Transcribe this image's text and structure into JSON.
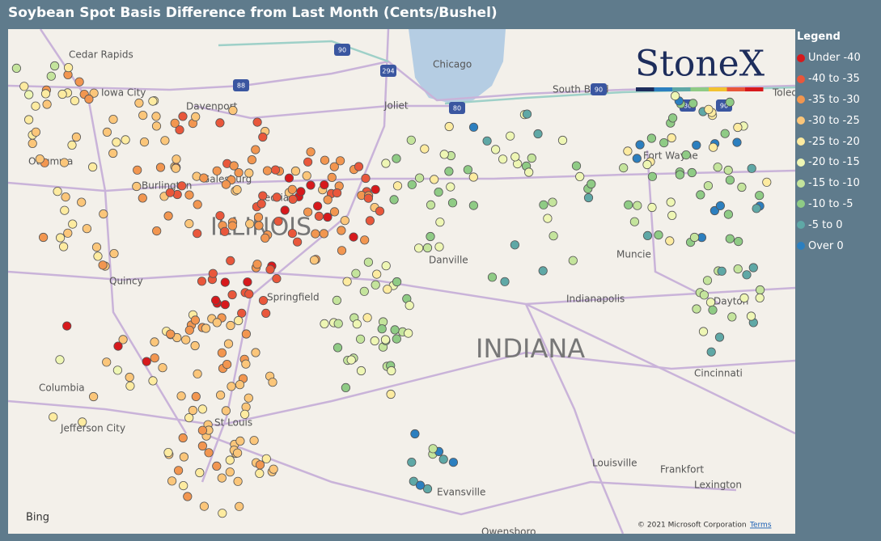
{
  "header": {
    "title": "Soybean Spot Basis Difference from Last Month (Cents/Bushel)"
  },
  "legend": {
    "title": "Legend",
    "items": [
      {
        "label": "Under -40",
        "color": "#d7191c"
      },
      {
        "label": "-40 to -35",
        "color": "#e9573b"
      },
      {
        "label": "-35 to -30",
        "color": "#f29650"
      },
      {
        "label": "-30 to -25",
        "color": "#fbc67a"
      },
      {
        "label": "-25 to -20",
        "color": "#fdeba0"
      },
      {
        "label": "-20 to -15",
        "color": "#eef6b4"
      },
      {
        "label": "-15 to -10",
        "color": "#c4e49c"
      },
      {
        "label": "-10 to -5",
        "color": "#8fcb85"
      },
      {
        "label": "-5 to 0",
        "color": "#5fa8a6"
      },
      {
        "label": "Over 0",
        "color": "#2c7fbf"
      }
    ]
  },
  "map": {
    "logo": "StoneX",
    "places": [
      "Cedar Rapids",
      "Iowa City",
      "Davenport",
      "Ottumwa",
      "Burlington",
      "Galesburg",
      "Peoria",
      "Quincy",
      "Springfield",
      "Columbia",
      "Jefferson City",
      "St Louis",
      "Chicago",
      "Joliet",
      "South Bend",
      "Toledo",
      "Fort Wayne",
      "Danville",
      "Muncie",
      "Indianapolis",
      "Dayton",
      "Cincinnati",
      "Louisville",
      "Frankfort",
      "Lexington",
      "Evansville",
      "Owensboro"
    ],
    "states": [
      "ILLINOIS",
      "INDIANA"
    ],
    "shields": [
      "90",
      "88",
      "294",
      "80",
      "90",
      "80",
      "90"
    ],
    "provider": "Bing",
    "copyright": "© 2021 Microsoft Corporation",
    "terms": "Terms"
  }
}
